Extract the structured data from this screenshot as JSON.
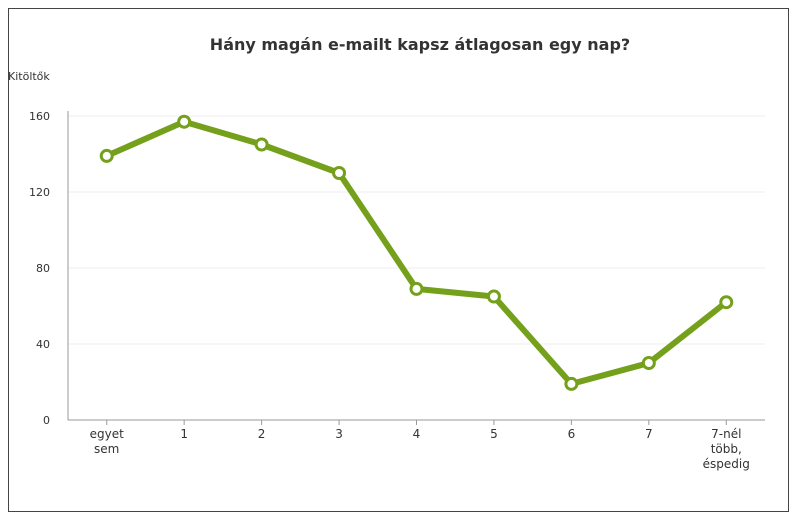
{
  "chart_data": {
    "type": "line",
    "title": "Hány magán e-mailt kapsz átlagosan egy nap?",
    "y_label": "Kitöltők",
    "categories": [
      "egyet sem",
      "1",
      "2",
      "3",
      "4",
      "5",
      "6",
      "7",
      "7-nél több, éspedig"
    ],
    "values": [
      139,
      157,
      145,
      130,
      69,
      65,
      19,
      30,
      62
    ],
    "color": "#74a01c",
    "ylim": [
      0,
      160
    ],
    "yticks": [
      0,
      40,
      80,
      120,
      160
    ],
    "grid": true
  }
}
